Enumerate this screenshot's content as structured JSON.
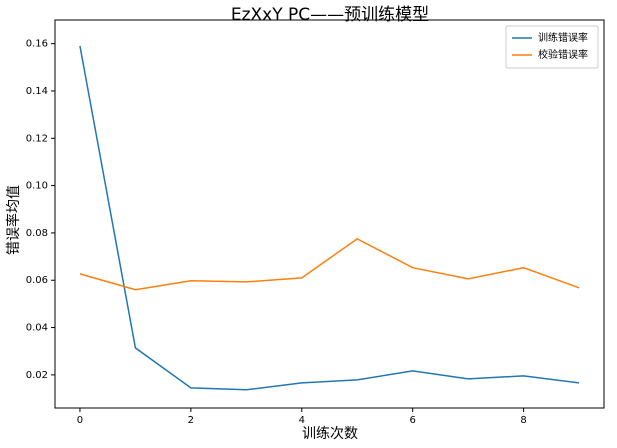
{
  "chart_data": {
    "type": "line",
    "title": "EzXxY PC——预训练模型",
    "x_label": "训练次数",
    "y_label": "错误率均值",
    "x": [
      0,
      1,
      2,
      3,
      4,
      5,
      6,
      7,
      8,
      9
    ],
    "series": [
      {
        "name": "训练错误率",
        "color": "#1f77b4",
        "values": [
          0.159,
          0.0314,
          0.0145,
          0.0137,
          0.0166,
          0.0179,
          0.0217,
          0.0183,
          0.0196,
          0.0166
        ]
      },
      {
        "name": "校验错误率",
        "color": "#ff7f0e",
        "values": [
          0.0627,
          0.056,
          0.0598,
          0.0593,
          0.061,
          0.0775,
          0.0653,
          0.0606,
          0.0653,
          0.0568
        ]
      }
    ],
    "xlim": [
      -0.45,
      9.45
    ],
    "xticks": [
      0,
      2,
      4,
      6,
      8
    ],
    "ylim": [
      0.006,
      0.17
    ],
    "yticks": [
      0.02,
      0.04,
      0.06,
      0.08,
      {
        "value": 0.1,
        "label": "0.10"
      },
      0.12,
      0.14,
      0.16
    ],
    "legend": "upper right"
  }
}
